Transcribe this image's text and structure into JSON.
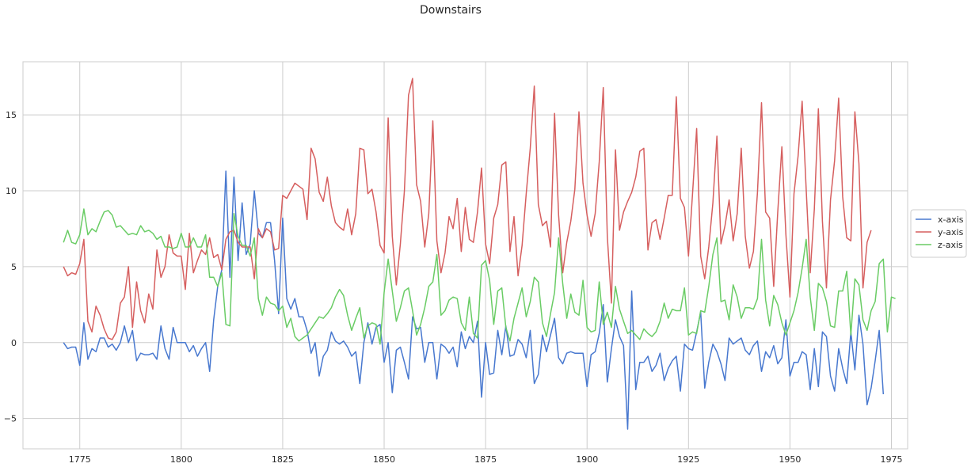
{
  "chart_data": {
    "type": "line",
    "title": "Downstairs",
    "xlabel": "",
    "ylabel": "",
    "xlim": [
      1761,
      1979
    ],
    "ylim": [
      -7,
      18.5
    ],
    "x_ticks": [
      1775,
      1800,
      1825,
      1850,
      1875,
      1900,
      1925,
      1950,
      1975
    ],
    "y_ticks": [
      -5,
      0,
      5,
      10,
      15
    ],
    "grid": true,
    "legend": "right",
    "x_start": 1771,
    "series": [
      {
        "name": "x-axis",
        "color": "#4878cf",
        "values": [
          0.0,
          -0.4,
          -0.3,
          -0.3,
          -1.5,
          1.3,
          -1.1,
          -0.4,
          -0.6,
          0.3,
          0.3,
          -0.3,
          -0.1,
          -0.5,
          0.0,
          1.1,
          0.0,
          0.8,
          -1.2,
          -0.7,
          -0.8,
          -0.8,
          -0.7,
          -1.1,
          1.1,
          -0.4,
          -1.1,
          1.0,
          0.0,
          0.0,
          0.0,
          -0.6,
          -0.2,
          -0.9,
          -0.4,
          0.0,
          -1.9,
          1.5,
          3.7,
          4.8,
          11.3,
          4.3,
          10.9,
          5.4,
          9.2,
          5.8,
          6.5,
          10.0,
          7.2,
          6.9,
          7.9,
          7.9,
          5.4,
          1.9,
          8.2,
          2.9,
          2.2,
          2.9,
          1.7,
          1.7,
          0.8,
          -0.7,
          0.0,
          -2.2,
          -0.9,
          -0.5,
          0.7,
          0.1,
          -0.1,
          0.1,
          -0.3,
          -0.9,
          -0.6,
          -2.7,
          0.0,
          1.3,
          -0.1,
          1.0,
          1.2,
          -1.3,
          0.0,
          -3.3,
          -0.5,
          -0.3,
          -1.3,
          -2.4,
          1.7,
          0.9,
          1.0,
          -1.3,
          0.0,
          0.0,
          -2.4,
          -0.1,
          -0.3,
          -0.7,
          -0.3,
          -1.6,
          0.7,
          -0.4,
          0.4,
          0.0,
          1.4,
          -3.6,
          0.0,
          -2.1,
          -2.0,
          0.8,
          -0.8,
          1.1,
          -0.9,
          -0.8,
          0.2,
          -0.1,
          -1.0,
          0.8,
          -2.7,
          -2.1,
          0.5,
          -0.6,
          0.5,
          1.6,
          -1.0,
          -1.4,
          -0.7,
          -0.6,
          -0.7,
          -0.7,
          -0.7,
          -2.9,
          -0.8,
          -0.6,
          0.6,
          2.5,
          -2.6,
          -0.4,
          1.5,
          0.4,
          -0.2,
          -5.7,
          3.4,
          -3.1,
          -1.3,
          -1.3,
          -0.9,
          -1.9,
          -1.5,
          -0.7,
          -2.5,
          -1.7,
          -1.2,
          -0.9,
          -3.2,
          -0.1,
          -0.4,
          -0.5,
          0.7,
          2.0,
          -3.0,
          -1.3,
          -0.1,
          -0.6,
          -1.4,
          -2.5,
          0.3,
          -0.1,
          0.1,
          0.3,
          -0.5,
          -0.8,
          -0.2,
          0.1,
          -1.9,
          -0.6,
          -1.0,
          -0.2,
          -1.4,
          -1.0,
          1.5,
          -2.2,
          -1.3,
          -1.3,
          -0.6,
          -0.8,
          -3.1,
          -0.4,
          -2.9,
          0.7,
          0.4,
          -2.2,
          -3.2,
          -0.4,
          -1.7,
          -2.7,
          0.7,
          -1.8,
          1.8,
          -0.1,
          -4.1,
          -3.0,
          -1.2,
          0.8,
          -3.4
        ]
      },
      {
        "name": "y-axis",
        "color": "#d65f5f",
        "values": [
          5.0,
          4.4,
          4.6,
          4.5,
          5.2,
          6.8,
          1.4,
          0.7,
          2.4,
          1.8,
          0.9,
          0.3,
          0.2,
          0.7,
          2.6,
          3.0,
          5.0,
          1.0,
          4.0,
          2.1,
          1.3,
          3.2,
          2.2,
          6.1,
          4.3,
          5.0,
          7.1,
          5.9,
          5.7,
          5.7,
          3.5,
          7.2,
          4.6,
          5.4,
          6.1,
          5.8,
          6.9,
          5.6,
          5.8,
          4.8,
          6.8,
          7.3,
          7.4,
          6.6,
          6.3,
          6.3,
          6.3,
          4.2,
          7.5,
          6.9,
          7.5,
          7.3,
          6.1,
          6.2,
          9.7,
          9.5,
          10.0,
          10.5,
          10.3,
          10.1,
          8.1,
          12.8,
          12.1,
          9.9,
          9.3,
          10.9,
          9.0,
          7.9,
          7.6,
          7.4,
          8.8,
          7.1,
          8.5,
          12.8,
          12.7,
          9.8,
          10.1,
          8.6,
          6.4,
          5.9,
          14.8,
          7.0,
          3.8,
          6.5,
          10.0,
          16.3,
          17.4,
          10.4,
          9.3,
          6.3,
          8.5,
          14.6,
          6.7,
          4.6,
          5.9,
          8.3,
          7.5,
          9.5,
          6.0,
          8.9,
          6.8,
          6.6,
          8.6,
          11.5,
          6.5,
          5.2,
          8.2,
          9.1,
          11.7,
          11.9,
          6.0,
          8.3,
          4.4,
          6.4,
          9.8,
          12.8,
          16.9,
          9.1,
          7.7,
          8.0,
          6.3,
          15.1,
          8.4,
          4.6,
          6.6,
          8.0,
          10.1,
          15.2,
          10.5,
          8.4,
          7.0,
          8.5,
          11.9,
          16.8,
          7.0,
          2.6,
          12.7,
          7.4,
          8.6,
          9.3,
          9.9,
          10.9,
          12.6,
          12.8,
          6.1,
          7.9,
          8.1,
          6.8,
          8.2,
          9.7,
          9.7,
          16.2,
          9.5,
          8.9,
          5.7,
          9.8,
          14.1,
          5.7,
          4.2,
          6.3,
          9.2,
          13.6,
          6.5,
          7.7,
          9.4,
          6.7,
          8.5,
          12.8,
          7.0,
          4.9,
          6.0,
          9.9,
          15.8,
          8.6,
          8.2,
          3.7,
          8.6,
          12.9,
          7.1,
          3.0,
          9.8,
          12.3,
          15.9,
          10.1,
          4.6,
          8.8,
          15.4,
          8.0,
          3.6,
          9.4,
          12.0,
          16.1,
          9.6,
          6.9,
          6.7,
          15.2,
          11.8,
          3.6,
          6.6,
          7.4
        ]
      },
      {
        "name": "z-axis",
        "color": "#6acc65",
        "values": [
          6.6,
          7.4,
          6.6,
          6.5,
          7.1,
          8.8,
          7.1,
          7.5,
          7.3,
          8.0,
          8.6,
          8.7,
          8.4,
          7.6,
          7.7,
          7.4,
          7.1,
          7.2,
          7.1,
          7.7,
          7.3,
          7.4,
          7.2,
          6.8,
          7.0,
          6.3,
          6.3,
          6.2,
          6.3,
          7.2,
          6.3,
          6.3,
          6.9,
          6.3,
          6.3,
          7.1,
          4.3,
          4.3,
          3.7,
          4.6,
          1.2,
          1.1,
          8.5,
          7.0,
          6.4,
          6.4,
          5.7,
          6.9,
          2.9,
          1.8,
          3.0,
          2.6,
          2.5,
          2.1,
          2.4,
          1.0,
          1.6,
          0.4,
          0.1,
          0.3,
          0.5,
          0.9,
          1.3,
          1.7,
          1.6,
          1.9,
          2.3,
          3.0,
          3.5,
          3.1,
          1.8,
          0.8,
          1.6,
          2.3,
          0.3,
          1.1,
          1.3,
          1.2,
          -0.1,
          3.3,
          5.5,
          3.4,
          1.4,
          2.3,
          3.4,
          3.6,
          2.1,
          0.5,
          1.2,
          2.3,
          3.7,
          4.0,
          5.8,
          1.8,
          2.1,
          2.8,
          3.0,
          2.9,
          1.3,
          0.8,
          3.0,
          0.6,
          0.3,
          5.1,
          5.4,
          4.1,
          1.2,
          3.4,
          3.6,
          1.0,
          0.1,
          1.6,
          2.6,
          3.6,
          1.7,
          2.7,
          4.3,
          4.0,
          1.3,
          0.4,
          1.9,
          3.3,
          6.9,
          3.9,
          1.6,
          3.2,
          2.0,
          1.8,
          4.1,
          1.0,
          0.7,
          0.8,
          4.0,
          1.2,
          2.0,
          1.0,
          3.7,
          2.2,
          1.4,
          0.6,
          0.8,
          0.5,
          0.2,
          0.9,
          0.6,
          0.4,
          0.7,
          1.4,
          2.6,
          1.6,
          2.2,
          2.1,
          2.1,
          3.6,
          0.5,
          0.7,
          0.6,
          2.1,
          2.0,
          3.7,
          5.8,
          6.9,
          2.7,
          2.8,
          1.5,
          3.8,
          3.0,
          1.6,
          2.3,
          2.3,
          2.2,
          2.9,
          6.8,
          2.8,
          1.1,
          3.1,
          2.5,
          1.3,
          0.5,
          1.3,
          2.1,
          3.3,
          4.9,
          6.8,
          3.0,
          0.8,
          3.9,
          3.6,
          2.7,
          1.1,
          1.0,
          3.4,
          3.4,
          4.7,
          0.5,
          4.2,
          3.8,
          1.5,
          0.8,
          2.1,
          2.7,
          5.2,
          5.5,
          0.7,
          3.0,
          2.9
        ]
      }
    ]
  }
}
